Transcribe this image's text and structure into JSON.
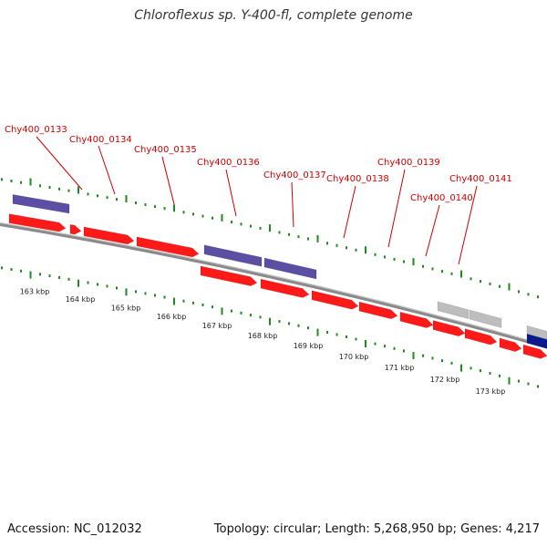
{
  "title": "Chloroflexus sp. Y-400-fl, complete genome",
  "accession": "Accession: NC_012032",
  "summary": "Topology: circular; Length: 5,268,950 bp; Genes: 4,217",
  "colors": {
    "backbone": "#8a8a8a",
    "gene_red": "#ff1a1a",
    "gene_purple": "#5b4fa3",
    "gene_gray": "#bdbdbd",
    "gene_navy": "#0a1a8c",
    "tick": "#1f8a1f",
    "label": "#cc0000"
  },
  "scale_labels": [
    "163 kbp",
    "164 kbp",
    "165 kbp",
    "166 kbp",
    "167 kbp",
    "168 kbp",
    "169 kbp",
    "170 kbp",
    "171 kbp",
    "172 kbp",
    "173 kbp"
  ],
  "gene_labels": [
    "Chy400_0133",
    "Chy400_0134",
    "Chy400_0135",
    "Chy400_0136",
    "Chy400_0137",
    "Chy400_0138",
    "Chy400_0139",
    "Chy400_0140",
    "Chy400_0141"
  ]
}
